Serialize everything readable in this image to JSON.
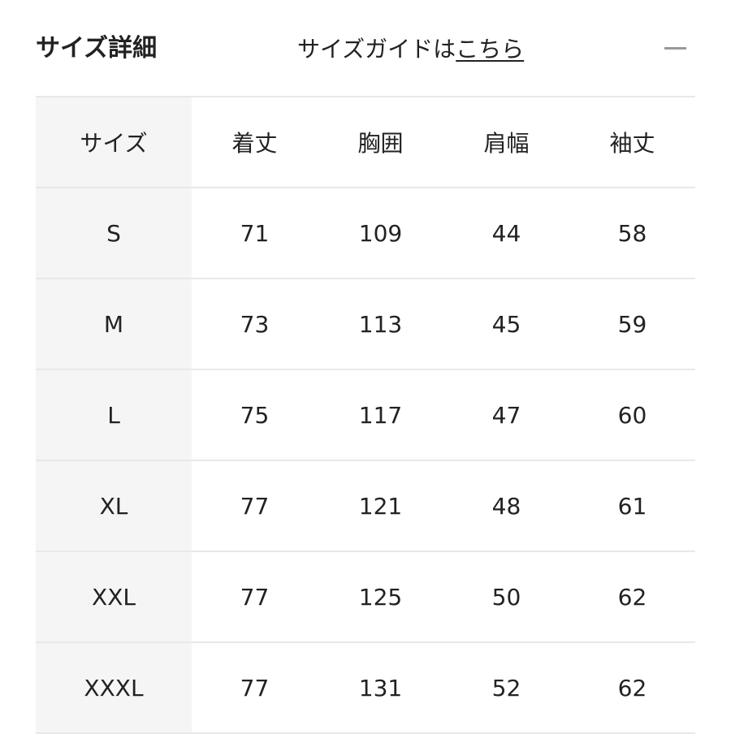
{
  "header": {
    "title": "サイズ詳細",
    "guide_prefix": "サイズガイドは",
    "guide_link": "こちら",
    "collapse_icon": "minus-icon"
  },
  "table": {
    "columns": [
      "サイズ",
      "着丈",
      "胸囲",
      "肩幅",
      "袖丈"
    ],
    "rows": [
      [
        "S",
        "71",
        "109",
        "44",
        "58"
      ],
      [
        "M",
        "73",
        "113",
        "45",
        "59"
      ],
      [
        "L",
        "75",
        "117",
        "47",
        "60"
      ],
      [
        "XL",
        "77",
        "121",
        "48",
        "61"
      ],
      [
        "XXL",
        "77",
        "125",
        "50",
        "62"
      ],
      [
        "XXXL",
        "77",
        "131",
        "52",
        "62"
      ]
    ]
  }
}
